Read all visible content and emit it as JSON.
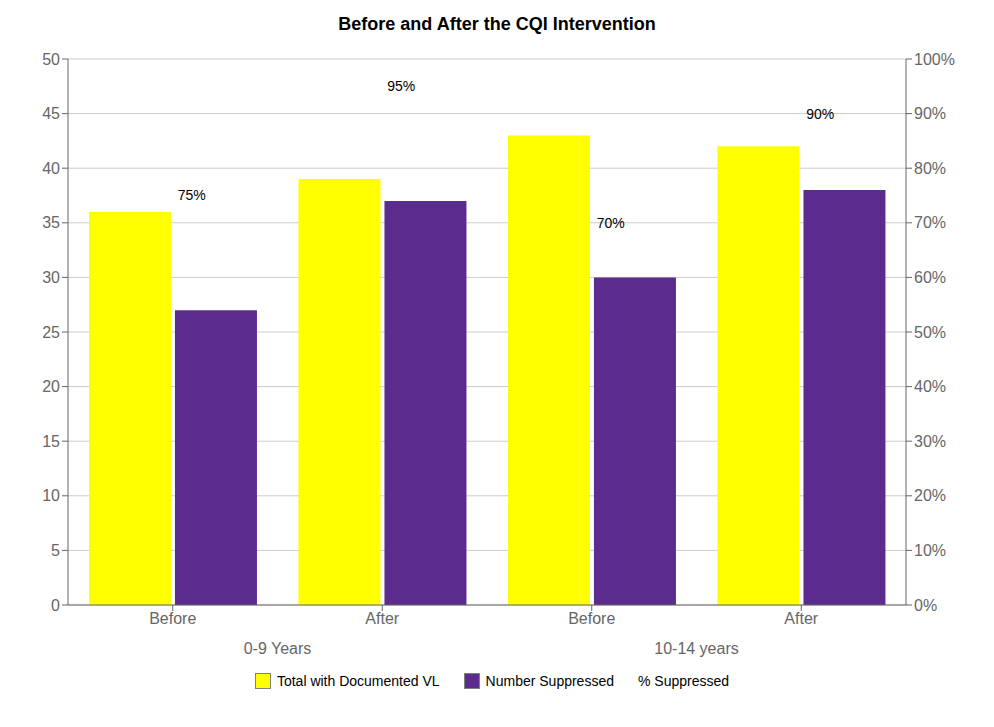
{
  "chart_data": {
    "type": "bar",
    "title": "Before and After the CQI Intervention",
    "categories": [
      "Before",
      "After",
      "Before",
      "After"
    ],
    "category_groups": [
      "0-9 Years",
      "0-9 Years",
      "10-14 years",
      "10-14 years"
    ],
    "series": [
      {
        "name": "Total with Documented VL",
        "type": "bar",
        "color": "#FFFF00",
        "values": [
          36,
          39,
          43,
          42
        ]
      },
      {
        "name": "Number Suppressed",
        "type": "bar",
        "color": "#5B2C8D",
        "values": [
          27,
          37,
          30,
          38
        ]
      },
      {
        "name": "% Suppressed",
        "type": "text",
        "axis": "y2",
        "values": [
          0.75,
          0.95,
          0.7,
          0.9
        ],
        "value_labels": [
          "75%",
          "95%",
          "70%",
          "90%"
        ]
      }
    ],
    "ylim": [
      0,
      50
    ],
    "yticks": [
      0,
      5,
      10,
      15,
      20,
      25,
      30,
      35,
      40,
      45,
      50
    ],
    "y2lim": [
      0,
      1.0
    ],
    "y2ticks": [
      {
        "value": 0.0,
        "label": "0%"
      },
      {
        "value": 0.1,
        "label": "10%"
      },
      {
        "value": 0.2,
        "label": "20%"
      },
      {
        "value": 0.3,
        "label": "30%"
      },
      {
        "value": 0.4,
        "label": "40%"
      },
      {
        "value": 0.5,
        "label": "50%"
      },
      {
        "value": 0.6,
        "label": "60%"
      },
      {
        "value": 0.7,
        "label": "70%"
      },
      {
        "value": 0.8,
        "label": "80%"
      },
      {
        "value": 0.9,
        "label": "90%"
      },
      {
        "value": 1.0,
        "label": "100%"
      }
    ],
    "grid": true,
    "legend": "bottom"
  }
}
